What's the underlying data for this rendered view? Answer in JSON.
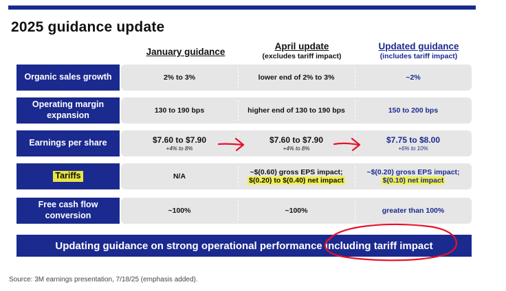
{
  "title": "2025 guidance update",
  "columns": [
    {
      "main": "January guidance",
      "sub": ""
    },
    {
      "main": "April update",
      "sub": "(excludes tariff impact)"
    },
    {
      "main": "Updated guidance",
      "sub": "(includes tariff impact)"
    }
  ],
  "rows": [
    {
      "label": "Organic sales growth",
      "jan": "2% to 3%",
      "apr": "lower end of 2% to 3%",
      "upd": "~2%"
    },
    {
      "label": "Operating margin expansion",
      "jan": "130 to 190 bps",
      "apr": "higher end of 130 to 190 bps",
      "upd": "150 to 200 bps"
    },
    {
      "label": "Earnings per share",
      "jan": "$7.60 to $7.90",
      "jan_note": "+4% to 8%",
      "apr": "$7.60 to $7.90",
      "apr_note": "+4% to 8%",
      "upd": "$7.75 to $8.00",
      "upd_note": "+6% to 10%"
    },
    {
      "label": "Tariffs",
      "jan": "N/A",
      "apr_line1": "~$(0.60) gross EPS impact;",
      "apr_line2": "$(0.20) to $(0.40) net impact",
      "upd_line1": "~$(0.20) gross EPS impact;",
      "upd_line2": "$(0.10) net impact"
    },
    {
      "label": "Free cash flow conversion",
      "jan": "~100%",
      "apr": "~100%",
      "upd": "greater than 100%"
    }
  ],
  "banner": "Updating guidance on strong operational performance including tariff impact",
  "source": "Source: 3M earnings presentation, 7/18/25 (emphasis added).",
  "colors": {
    "navy": "#1b2a8f",
    "highlight": "#f0ee50",
    "annotation": "#e8102a"
  }
}
